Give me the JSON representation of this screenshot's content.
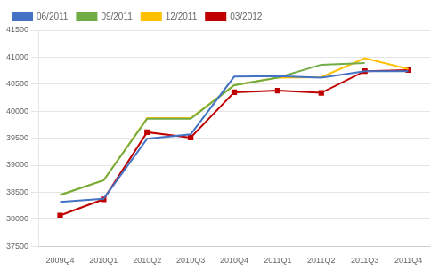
{
  "chart_data": {
    "type": "line",
    "categories": [
      "2009Q4",
      "2010Q1",
      "2010Q2",
      "2010Q3",
      "2010Q4",
      "2011Q1",
      "2011Q2",
      "2011Q3",
      "2011Q4"
    ],
    "series": [
      {
        "name": "06/2011",
        "color": "#4472c4",
        "values": [
          38320,
          38380,
          39490,
          39570,
          40640,
          40650,
          40620,
          40740,
          40740
        ]
      },
      {
        "name": "09/2011",
        "color": "#70ad47",
        "values": [
          38450,
          38720,
          39860,
          39860,
          40480,
          40620,
          40860,
          40890,
          null
        ]
      },
      {
        "name": "12/2011",
        "color": "#ffc000",
        "values": [
          38450,
          38720,
          39870,
          39870,
          40480,
          40620,
          40630,
          40980,
          40780
        ]
      },
      {
        "name": "03/2012",
        "color": "#c00000",
        "marker": "square",
        "values": [
          38070,
          38370,
          39610,
          39510,
          40350,
          40380,
          40340,
          40740,
          40760
        ]
      }
    ],
    "ylim": [
      37500,
      41500
    ],
    "yticks": [
      37500,
      38000,
      38500,
      39000,
      39500,
      40000,
      40500,
      41000,
      41500
    ],
    "grid": true,
    "legend": "upper left"
  }
}
